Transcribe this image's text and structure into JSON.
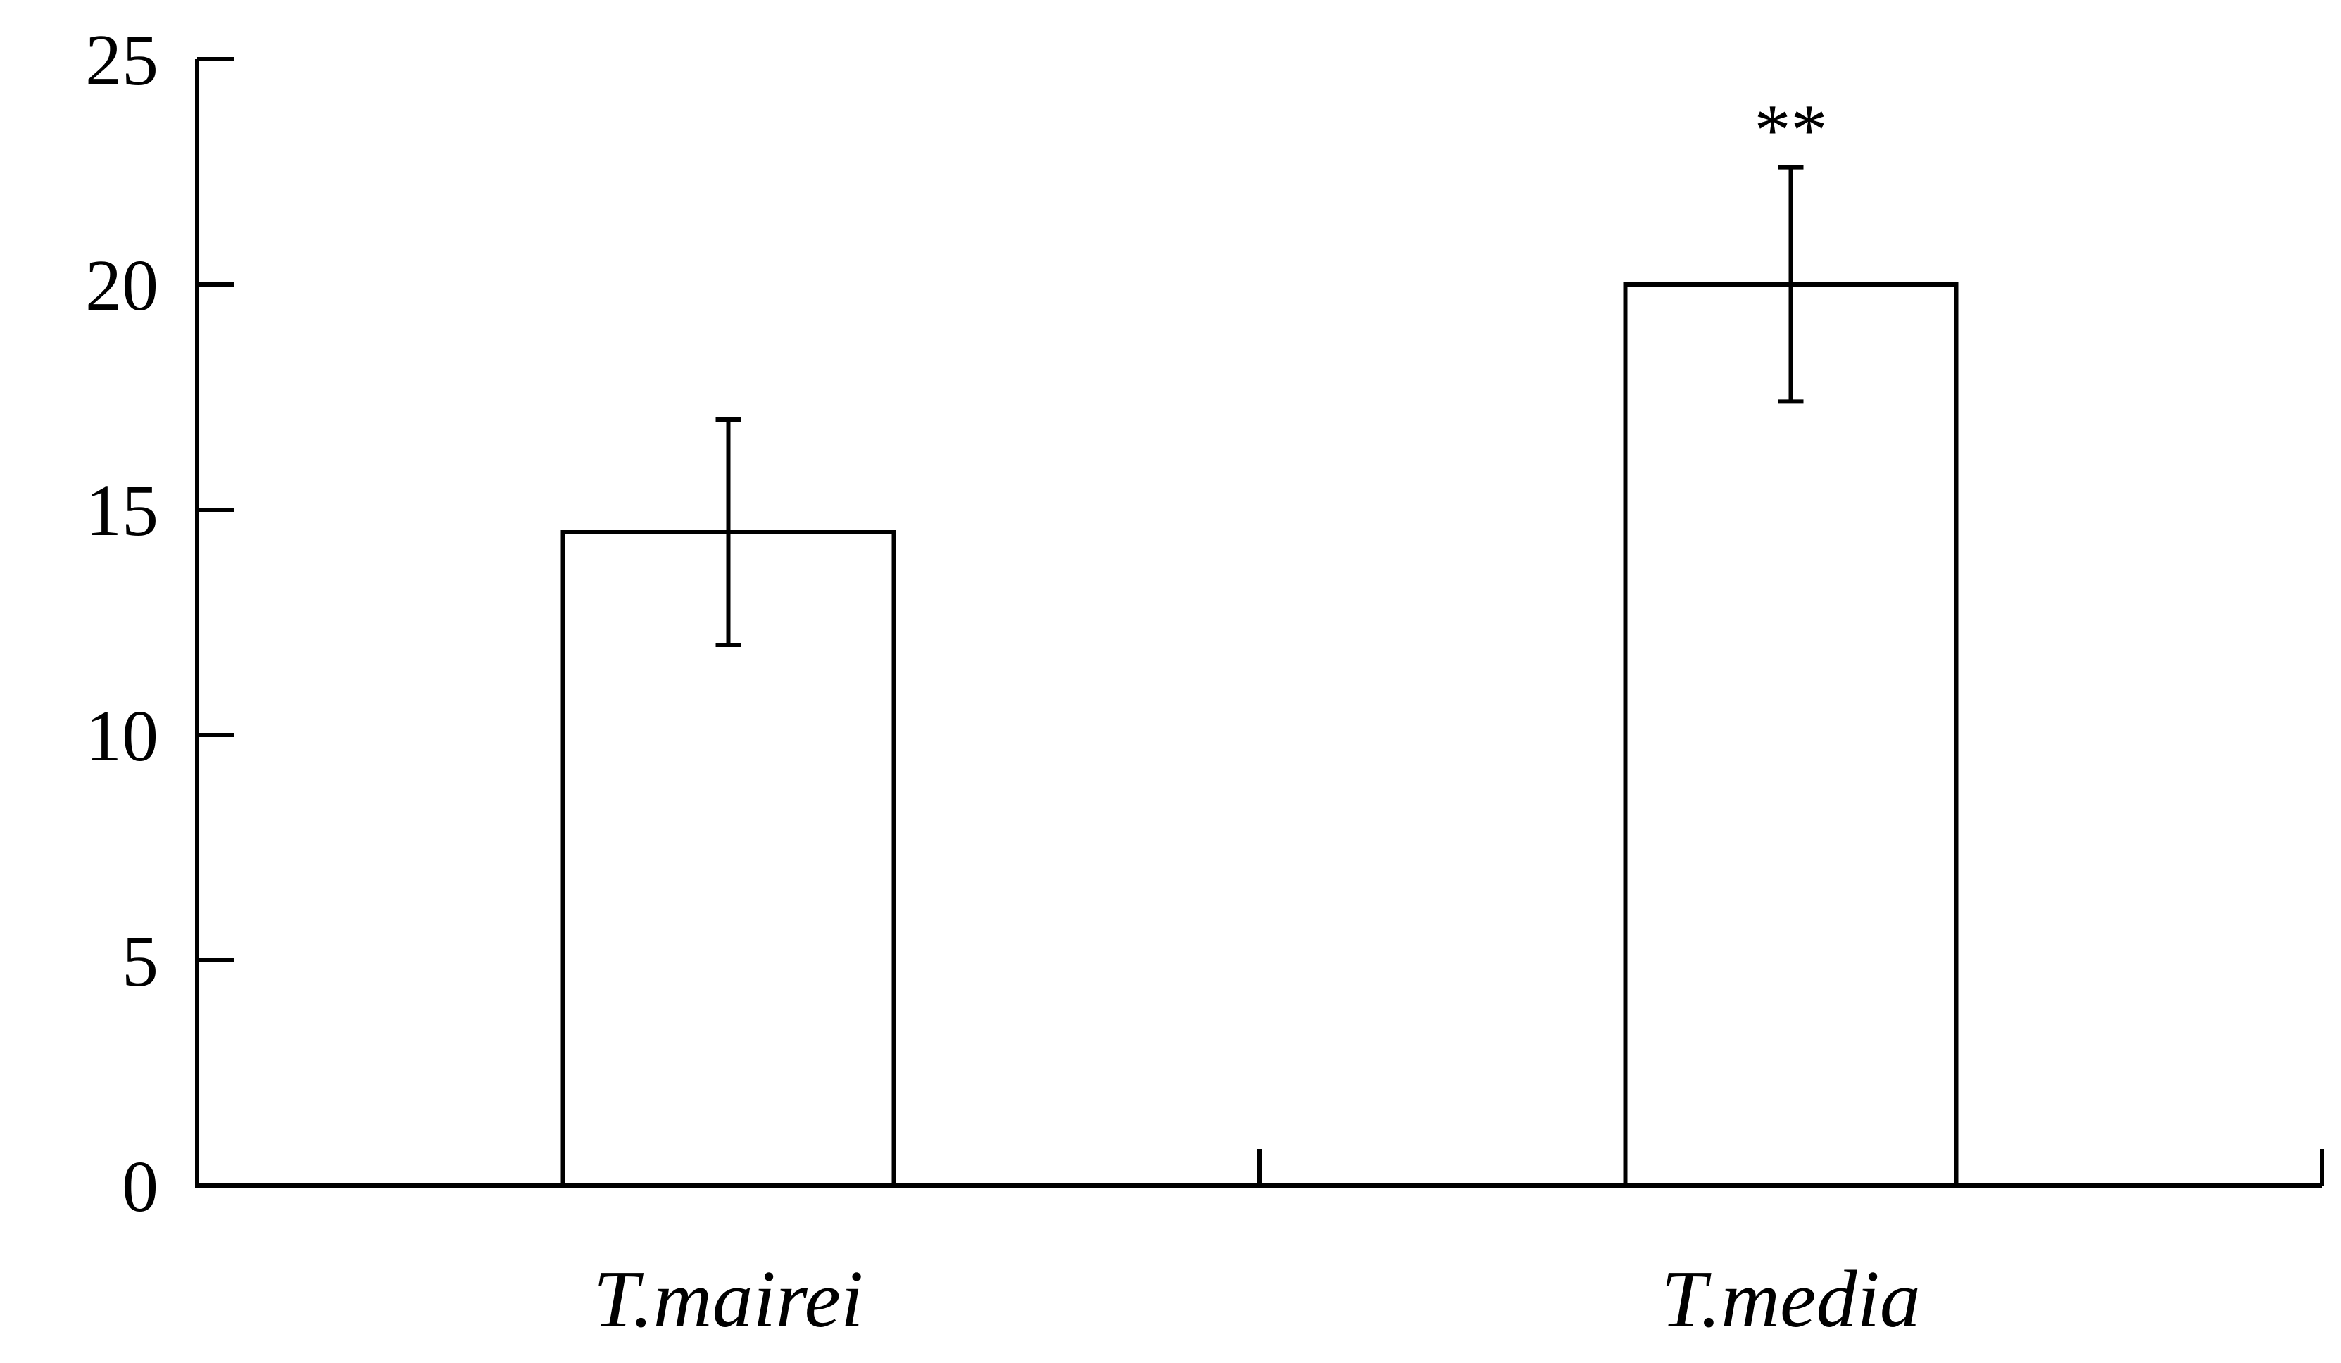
{
  "chart_data": {
    "type": "bar",
    "title": "",
    "xlabel": "",
    "ylabel": "",
    "categories": [
      "T.mairei",
      "T.media"
    ],
    "values": [
      14.5,
      20.0
    ],
    "error_bars": [
      2.5,
      2.6
    ],
    "significance": [
      "",
      "**"
    ],
    "ylim": [
      0,
      25
    ],
    "yticks": [
      0,
      5,
      10,
      15,
      20,
      25
    ],
    "grid": false,
    "legend": "none",
    "colors": {
      "bar_fill": "#ffffff",
      "bar_stroke": "#000000",
      "axis": "#000000"
    }
  }
}
